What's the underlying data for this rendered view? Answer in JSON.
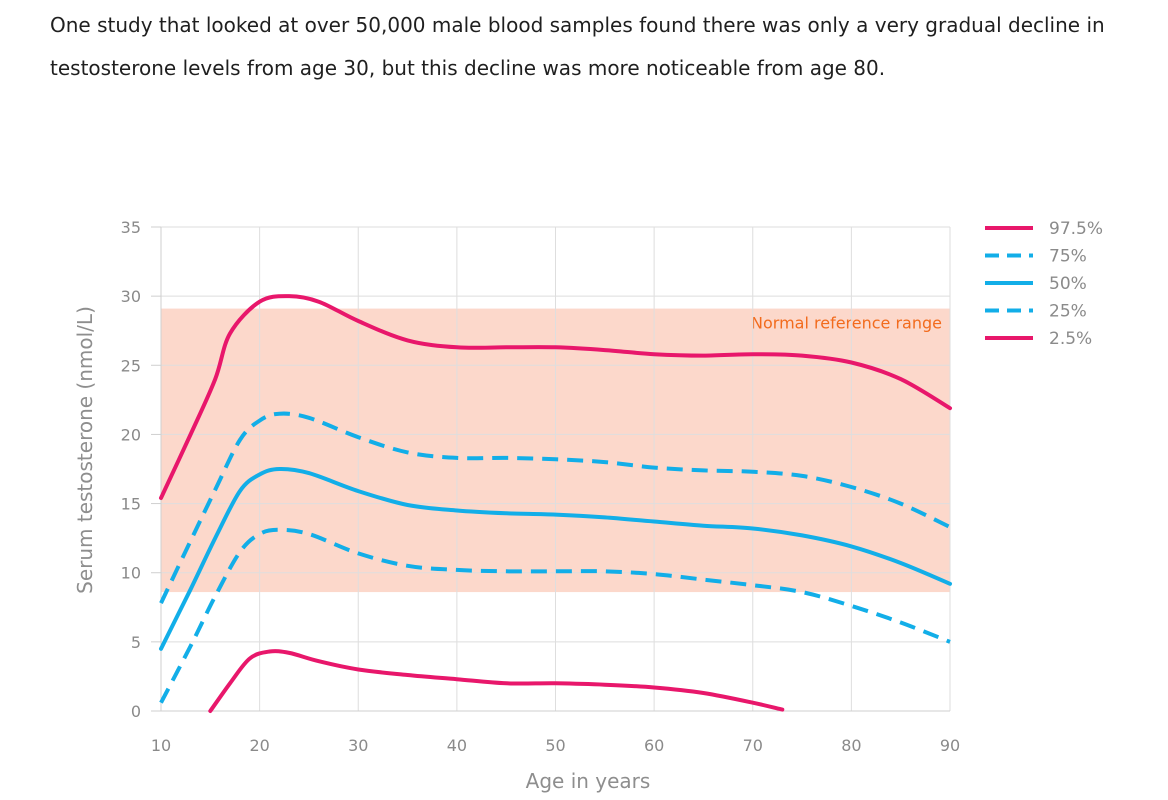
{
  "intro_text": "One study that looked at over 50,000 male blood samples found there was only a very gradual decline in testosterone levels from age 30, but this decline was more noticeable from age 80.",
  "chart_data": {
    "type": "line",
    "title": "",
    "xlabel": "Age in years",
    "ylabel": "Serum testosterone (nmol/L)",
    "xlim": [
      10,
      90
    ],
    "ylim": [
      0,
      35
    ],
    "xticks": [
      10,
      20,
      30,
      40,
      50,
      60,
      70,
      80,
      90
    ],
    "yticks": [
      0,
      5,
      10,
      15,
      20,
      25,
      30,
      35
    ],
    "grid": true,
    "legend_position": "top-right",
    "reference_band": {
      "label": "Normal reference range",
      "from": 8.6,
      "to": 29.1,
      "color": "#fcd8cb"
    },
    "series": [
      {
        "name": "97.5%",
        "color": "#e8176b",
        "dashed": false,
        "points": [
          [
            10,
            15.4
          ],
          [
            13,
            20
          ],
          [
            15.5,
            24
          ],
          [
            17,
            27.3
          ],
          [
            20,
            29.6
          ],
          [
            23,
            30
          ],
          [
            26,
            29.6
          ],
          [
            30,
            28.2
          ],
          [
            35,
            26.8
          ],
          [
            40,
            26.3
          ],
          [
            45,
            26.3
          ],
          [
            50,
            26.3
          ],
          [
            55,
            26.1
          ],
          [
            60,
            25.8
          ],
          [
            65,
            25.7
          ],
          [
            70,
            25.8
          ],
          [
            75,
            25.7
          ],
          [
            80,
            25.2
          ],
          [
            85,
            24
          ],
          [
            90,
            21.9
          ]
        ]
      },
      {
        "name": "75%",
        "color": "#12aee8",
        "dashed": true,
        "points": [
          [
            10,
            7.8
          ],
          [
            13,
            12.3
          ],
          [
            15.5,
            16
          ],
          [
            18,
            19.6
          ],
          [
            20,
            21
          ],
          [
            22,
            21.5
          ],
          [
            25,
            21.2
          ],
          [
            30,
            19.8
          ],
          [
            35,
            18.7
          ],
          [
            40,
            18.3
          ],
          [
            45,
            18.3
          ],
          [
            50,
            18.2
          ],
          [
            55,
            18
          ],
          [
            60,
            17.6
          ],
          [
            65,
            17.4
          ],
          [
            70,
            17.3
          ],
          [
            75,
            17
          ],
          [
            80,
            16.2
          ],
          [
            85,
            15
          ],
          [
            90,
            13.3
          ]
        ]
      },
      {
        "name": "50%",
        "color": "#12aee8",
        "dashed": false,
        "points": [
          [
            10,
            4.5
          ],
          [
            13,
            8.8
          ],
          [
            15.5,
            12.5
          ],
          [
            18,
            15.9
          ],
          [
            20,
            17.1
          ],
          [
            22,
            17.5
          ],
          [
            25,
            17.2
          ],
          [
            30,
            15.9
          ],
          [
            35,
            14.9
          ],
          [
            40,
            14.5
          ],
          [
            45,
            14.3
          ],
          [
            50,
            14.2
          ],
          [
            55,
            14
          ],
          [
            60,
            13.7
          ],
          [
            65,
            13.4
          ],
          [
            70,
            13.2
          ],
          [
            75,
            12.7
          ],
          [
            80,
            11.9
          ],
          [
            85,
            10.7
          ],
          [
            90,
            9.2
          ]
        ]
      },
      {
        "name": "25%",
        "color": "#12aee8",
        "dashed": true,
        "points": [
          [
            10,
            0.6
          ],
          [
            13,
            4.7
          ],
          [
            15.5,
            8.3
          ],
          [
            18,
            11.5
          ],
          [
            20,
            12.8
          ],
          [
            22,
            13.1
          ],
          [
            25,
            12.8
          ],
          [
            30,
            11.4
          ],
          [
            35,
            10.5
          ],
          [
            40,
            10.2
          ],
          [
            45,
            10.1
          ],
          [
            50,
            10.1
          ],
          [
            55,
            10.1
          ],
          [
            60,
            9.9
          ],
          [
            65,
            9.5
          ],
          [
            70,
            9.1
          ],
          [
            75,
            8.6
          ],
          [
            80,
            7.6
          ],
          [
            85,
            6.4
          ],
          [
            90,
            5
          ]
        ]
      },
      {
        "name": "2.5%",
        "color": "#e8176b",
        "dashed": false,
        "points": [
          [
            15,
            0
          ],
          [
            17,
            2
          ],
          [
            19,
            3.8
          ],
          [
            21,
            4.3
          ],
          [
            23,
            4.2
          ],
          [
            26,
            3.6
          ],
          [
            30,
            3
          ],
          [
            35,
            2.6
          ],
          [
            40,
            2.3
          ],
          [
            45,
            2
          ],
          [
            50,
            2
          ],
          [
            55,
            1.9
          ],
          [
            60,
            1.7
          ],
          [
            65,
            1.3
          ],
          [
            70,
            0.6
          ],
          [
            73,
            0.1
          ]
        ]
      }
    ]
  }
}
